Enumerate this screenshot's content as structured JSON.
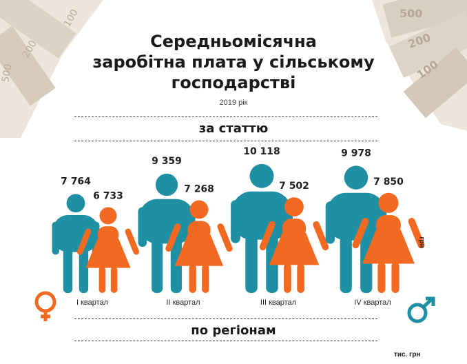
{
  "title_lines": [
    "Середньомісячна",
    "заробітна плата у сільському",
    "господарстві"
  ],
  "year": "2019 рік",
  "section_gender": "за статтю",
  "section_regions": "по регіонам",
  "units_vertical": "грн",
  "units_bottom": "тис. грн",
  "colors": {
    "male": "#1f8fa3",
    "female": "#f26a22",
    "bg_note": "#cfc7bc"
  },
  "chart_data": {
    "type": "bar",
    "categories": [
      "І квартал",
      "ІІ квартал",
      "ІІІ квартал",
      "IV квартал"
    ],
    "series": [
      {
        "values": [
          7764,
          9359,
          10118,
          9978
        ],
        "labels": [
          "7 764",
          "9 359",
          "10 118",
          "9 978"
        ],
        "color": "#1f8fa3"
      },
      {
        "values": [
          6733,
          7268,
          7502,
          7850
        ],
        "labels": [
          "6 733",
          "7 268",
          "7 502",
          "7 850"
        ],
        "color": "#f26a22"
      }
    ]
  }
}
